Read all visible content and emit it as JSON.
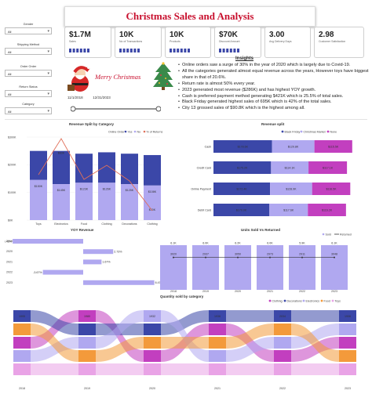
{
  "header": {
    "title": "Christmas Sales and Analysis"
  },
  "kpis": [
    {
      "value": "$1.7M",
      "label": "Sales"
    },
    {
      "value": "10K",
      "label": "No of Transactions"
    },
    {
      "value": "10K",
      "label": "Products"
    },
    {
      "value": "$70K",
      "label": "Discount Amount"
    },
    {
      "value": "3.00",
      "label": "Avg Delivery Days"
    },
    {
      "value": "2.98",
      "label": "Customer Satisfaction"
    }
  ],
  "filters": [
    {
      "label": "Gender",
      "value": "All"
    },
    {
      "label": "Shipping Method",
      "value": "All"
    },
    {
      "label": "Order Order",
      "value": "All"
    },
    {
      "label": "Return Status",
      "value": "All"
    },
    {
      "label": "Category",
      "value": "All"
    }
  ],
  "banner": {
    "greeting": "Merry Christmas"
  },
  "date_range": {
    "start": "11/1/2018",
    "end": "12/31/2023"
  },
  "insights": {
    "title": "Insights",
    "items": [
      "Online orders saw a surge of 30% in the year of 2020 which is largely due to Covid-19.",
      "All the categories generated almost equal revenue across the years, However toys have biggest share in that of 20.6%.",
      "Return rate is almost 50% every year.",
      "2023 generated most revenue ($286K) and has highest YOY growth.",
      "Cash is preferred payment method generating $421K which is 25.5% of total sales.",
      "Black Friday generated highest sales of 695K which is 42% of the total sales.",
      "City 13 grossed sales of $90.8K which is the highest among all."
    ]
  },
  "colors": {
    "dark": "#3b47a8",
    "light": "#b0a8f0",
    "magenta": "#c23fbf",
    "line": "#e0705a",
    "red": "#c8102e"
  },
  "chart_data": [
    {
      "type": "bar",
      "title": "Revenue Split by Category",
      "legend": [
        "Online Order",
        "Yes",
        "No",
        "% of Returns"
      ],
      "categories": [
        "Toys",
        "Electronics",
        "Food",
        "Clothing",
        "Decorations",
        "Clothing"
      ],
      "series": [
        {
          "name": "Yes",
          "values": [
            250000,
            250000,
            240000,
            245000,
            240000,
            235000
          ]
        },
        {
          "name": "No",
          "values": [
            145000,
            130000,
            135000,
            135000,
            130000,
            125000
          ]
        }
      ],
      "data_labels": [
        "",
        "$83K",
        "",
        "",
        "",
        "$70K"
      ],
      "bar_labels": [
        "$150K",
        "$145K",
        "$123K",
        "$126K",
        "$125K",
        "$108K"
      ],
      "y_ticks": [
        "$300K",
        "$200K",
        "$100K",
        "$0K"
      ],
      "ylim": [
        0,
        300000
      ]
    },
    {
      "type": "bar",
      "title": "Revenue split",
      "legend": [
        "Black Friday",
        "Christmas Market",
        "None"
      ],
      "categories": [
        "Cash",
        "Credit Card",
        "Online Payment",
        "Debit Card"
      ],
      "series": [
        {
          "name": "Black Friday",
          "values": [
            178,
            175,
            172,
            170
          ]
        },
        {
          "name": "Christmas Market",
          "values": [
            129,
            114,
            128,
            117
          ]
        },
        {
          "name": "None",
          "values": [
            115,
            117,
            116,
            116
          ]
        }
      ],
      "labels": [
        [
          "$178.6K",
          "$129.8K",
          "$115.5K"
        ],
        [
          "$175.2K",
          "$114.1K",
          "$117.1K"
        ],
        [
          "$172.4K",
          "$128.9K",
          "$116.5K"
        ],
        [
          "$170.0K",
          "$117.6K",
          "$116.2K"
        ]
      ]
    },
    {
      "type": "bar",
      "title": "YOY Revenue",
      "categories": [
        "2019",
        "2020",
        "2021",
        "2022",
        "2023"
      ],
      "values": [
        -6.42,
        2.73,
        1.67,
        -3.67,
        6.47
      ],
      "labels": [
        "-6.42%",
        "2.73%",
        "1.67%",
        "-3.67%",
        "6.47%"
      ]
    },
    {
      "type": "bar",
      "title": "Units Sold Vs Returned",
      "legend": [
        "Sold",
        "Returned"
      ],
      "categories": [
        "2018",
        "2019",
        "2020",
        "2021",
        "2022",
        "2023"
      ],
      "series": [
        {
          "name": "Sold",
          "values": [
            6,
            6,
            6,
            6,
            6,
            6
          ]
        },
        {
          "name": "Returned",
          "values": [
            3,
            3,
            3,
            3,
            3,
            3
          ]
        }
      ],
      "top_labels": [
        "6.1K",
        "6.0K",
        "6.2K",
        "6.0K",
        "5.9K",
        "6.1K"
      ],
      "mid_labels": [
        "3020",
        "2937",
        "3050",
        "2973",
        "2911",
        "3048"
      ]
    },
    {
      "type": "area",
      "title": "Quantity sold by category",
      "legend": [
        "Clothing",
        "Decorations",
        "Electronics",
        "Food",
        "Toys"
      ],
      "x": [
        "2018",
        "2019",
        "2020",
        "2021",
        "2022",
        "2023"
      ]
    }
  ]
}
